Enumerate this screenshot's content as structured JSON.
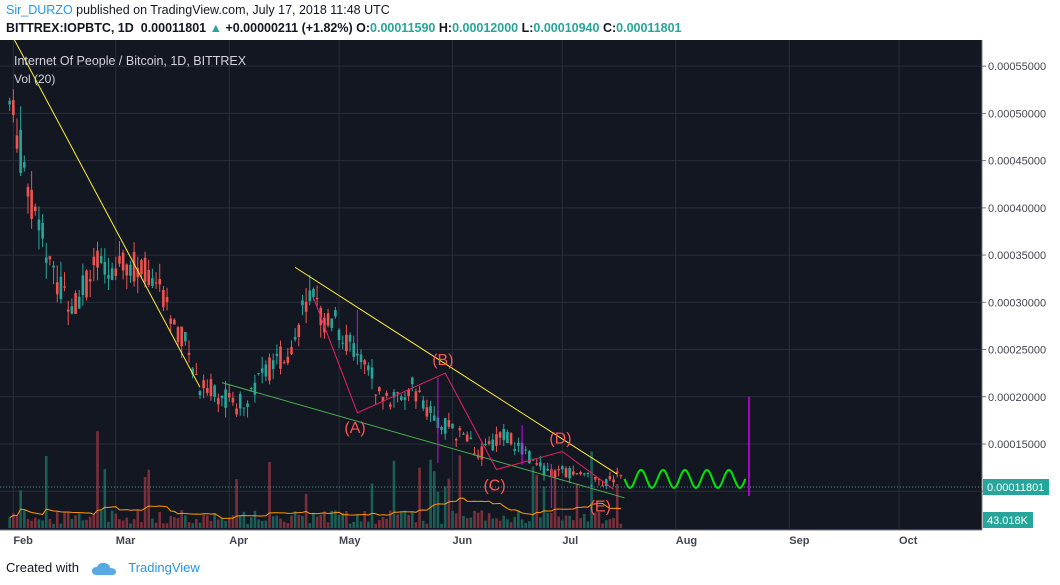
{
  "header": {
    "author": "Sir_DURZO",
    "published_text": "published on TradingView.com, July 17, 2018 11:48 UTC",
    "symbol": "BITTREX:IOPBTC, 1D",
    "last": "0.00011801",
    "change": "+0.00000211 (+1.82%)",
    "open_label": "O:",
    "open": "0.00011590",
    "high_label": "H:",
    "high": "0.00012000",
    "low_label": "L:",
    "low": "0.00010940",
    "close_label": "C:",
    "close": "0.00011801"
  },
  "footer": {
    "created_with": "Created with",
    "brand": "TradingView"
  },
  "chart_data": {
    "type": "candlestick",
    "title": "Internet Of People / Bitcoin, 1D, BITTREX",
    "volume_label": "Vol (20)",
    "x_tick_labels": [
      "Feb",
      "Mar",
      "Apr",
      "May",
      "Jun",
      "Jul",
      "Aug",
      "Sep",
      "Oct"
    ],
    "y_tick_labels": [
      "0.00055000",
      "0.00050000",
      "0.00045000",
      "0.00040000",
      "0.00035000",
      "0.00030000",
      "0.00025000",
      "0.00020000",
      "0.00015000",
      "0.00010000"
    ],
    "y_ticks": [
      0.00055,
      0.0005,
      0.00045,
      0.0004,
      0.00035,
      0.0003,
      0.00025,
      0.0002,
      0.00015,
      0.0001
    ],
    "ylim": [
      7.8e-05,
      0.000565
    ],
    "price_label": "0.00011801",
    "last_price": 0.00011801,
    "volume_label_value": "43.018K",
    "wave_labels": [
      "(A)",
      "(B)",
      "(C)",
      "(D)",
      "(E)"
    ],
    "price_path": [
      {
        "date": "2018-01-31",
        "price": 0.00051
      },
      {
        "date": "2018-02-03",
        "price": 0.00046
      },
      {
        "date": "2018-02-06",
        "price": 0.0004
      },
      {
        "date": "2018-02-09",
        "price": 0.00037
      },
      {
        "date": "2018-02-12",
        "price": 0.00033
      },
      {
        "date": "2018-02-15",
        "price": 0.00031
      },
      {
        "date": "2018-02-18",
        "price": 0.0003
      },
      {
        "date": "2018-02-21",
        "price": 0.00032
      },
      {
        "date": "2018-02-24",
        "price": 0.00034
      },
      {
        "date": "2018-02-27",
        "price": 0.00033
      },
      {
        "date": "2018-03-03",
        "price": 0.00035
      },
      {
        "date": "2018-03-06",
        "price": 0.00034
      },
      {
        "date": "2018-03-09",
        "price": 0.00033
      },
      {
        "date": "2018-03-12",
        "price": 0.00032
      },
      {
        "date": "2018-03-15",
        "price": 0.00029
      },
      {
        "date": "2018-03-18",
        "price": 0.00027
      },
      {
        "date": "2018-03-21",
        "price": 0.00025
      },
      {
        "date": "2018-03-24",
        "price": 0.00021
      },
      {
        "date": "2018-03-27",
        "price": 0.00021
      },
      {
        "date": "2018-03-30",
        "price": 0.0002
      },
      {
        "date": "2018-04-03",
        "price": 0.00019
      },
      {
        "date": "2018-04-06",
        "price": 0.0002
      },
      {
        "date": "2018-04-09",
        "price": 0.00022
      },
      {
        "date": "2018-04-12",
        "price": 0.00023
      },
      {
        "date": "2018-04-15",
        "price": 0.00024
      },
      {
        "date": "2018-04-18",
        "price": 0.00025
      },
      {
        "date": "2018-04-21",
        "price": 0.00029
      },
      {
        "date": "2018-04-24",
        "price": 0.0003
      },
      {
        "date": "2018-04-27",
        "price": 0.00028
      },
      {
        "date": "2018-04-30",
        "price": 0.00028
      },
      {
        "date": "2018-05-03",
        "price": 0.00026
      },
      {
        "date": "2018-05-06",
        "price": 0.00024
      },
      {
        "date": "2018-05-09",
        "price": 0.00023
      },
      {
        "date": "2018-05-12",
        "price": 0.0002
      },
      {
        "date": "2018-05-15",
        "price": 0.0002
      },
      {
        "date": "2018-05-18",
        "price": 0.0002
      },
      {
        "date": "2018-05-21",
        "price": 0.00021
      },
      {
        "date": "2018-05-24",
        "price": 0.00019
      },
      {
        "date": "2018-05-27",
        "price": 0.00018
      },
      {
        "date": "2018-05-30",
        "price": 0.00017
      },
      {
        "date": "2018-06-03",
        "price": 0.00016
      },
      {
        "date": "2018-06-06",
        "price": 0.00015
      },
      {
        "date": "2018-06-09",
        "price": 0.00014
      },
      {
        "date": "2018-06-12",
        "price": 0.00015
      },
      {
        "date": "2018-06-15",
        "price": 0.00016
      },
      {
        "date": "2018-06-18",
        "price": 0.00015
      },
      {
        "date": "2018-06-21",
        "price": 0.00014
      },
      {
        "date": "2018-06-24",
        "price": 0.00013
      },
      {
        "date": "2018-06-27",
        "price": 0.00012
      },
      {
        "date": "2018-06-30",
        "price": 0.00012
      },
      {
        "date": "2018-07-03",
        "price": 0.00012
      },
      {
        "date": "2018-07-06",
        "price": 0.00012
      },
      {
        "date": "2018-07-09",
        "price": 0.00011
      },
      {
        "date": "2018-07-12",
        "price": 0.00011
      },
      {
        "date": "2018-07-15",
        "price": 0.000115
      },
      {
        "date": "2018-07-17",
        "price": 0.00011801
      }
    ]
  },
  "colors": {
    "background": "#131722",
    "up_candle": "#26a69a",
    "down_candle": "#ef5350",
    "trendline": "#ffeb3b",
    "support_line": "#4caf50",
    "wave_line": "#e91e63",
    "wave_label": "#ff5252",
    "projection": "#00e600",
    "vertical_marker": "#d500f9",
    "volume_ma": "#ff9800",
    "price_tag": "#26a69a",
    "axis_text": "#434651"
  }
}
